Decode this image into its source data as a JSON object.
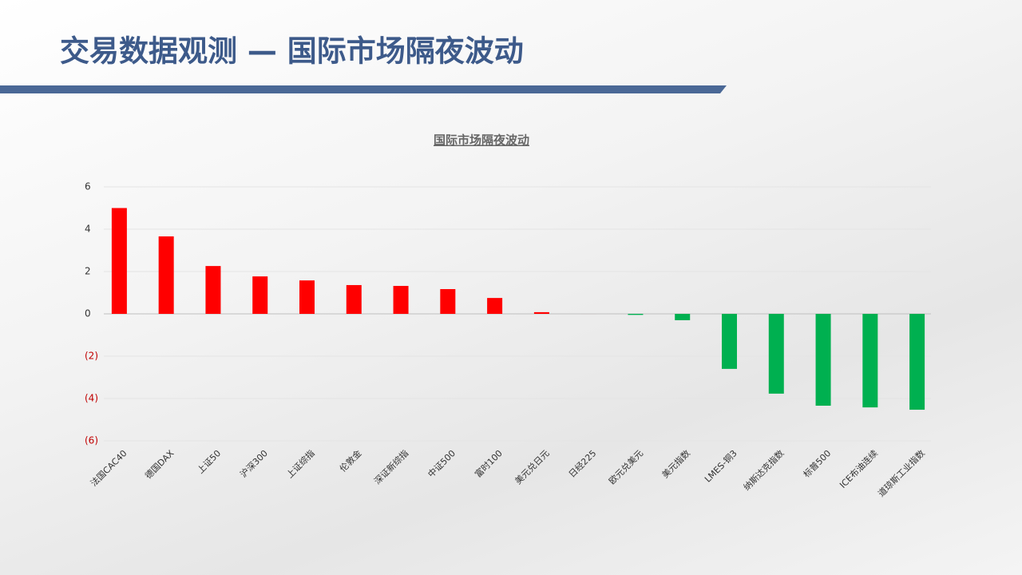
{
  "header": {
    "title": "交易数据观测 — 国际市场隔夜波动"
  },
  "chart_data": {
    "type": "bar",
    "title": "国际市场隔夜波动",
    "categories": [
      "法国CAC40",
      "德国DAX",
      "上证50",
      "沪深300",
      "上证综指",
      "伦敦金",
      "深证新综指",
      "中证500",
      "富时100",
      "美元兑日元",
      "日经225",
      "欧元兑美元",
      "美元指数",
      "LMES-铜3",
      "纳斯达克指数",
      "标普500",
      "ICE布油连续",
      "道琼斯工业指数"
    ],
    "values": [
      5.0,
      3.66,
      2.26,
      1.77,
      1.58,
      1.36,
      1.32,
      1.17,
      0.75,
      0.08,
      0,
      -0.05,
      -0.3,
      -2.6,
      -3.77,
      -4.34,
      -4.42,
      -4.53
    ],
    "color_positive": "#ff0000",
    "color_negative": "#00b050",
    "negative_tick_color": "#c00000",
    "ylim": [
      -6,
      6
    ],
    "yticks": [
      {
        "value": -6,
        "label": "(6)"
      },
      {
        "value": -4,
        "label": "(4)"
      },
      {
        "value": -2,
        "label": "(2)"
      },
      0,
      2,
      4,
      6
    ],
    "grid": true
  }
}
